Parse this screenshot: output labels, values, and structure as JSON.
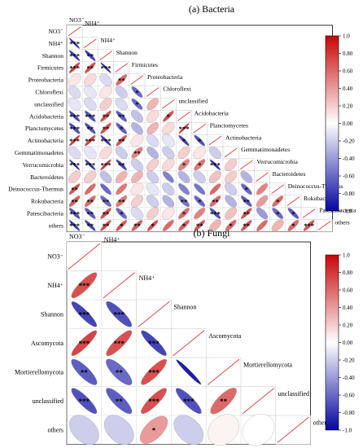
{
  "chart_data": [
    {
      "type": "heatmap",
      "subtype": "lower-triangle correlation ellipse matrix",
      "title": "(a) Bacteria",
      "variables": [
        "NO3⁻",
        "NH4⁺",
        "Shannon",
        "Firmicutes",
        "Proteobacteria",
        "Chloroflexi",
        "unclassified",
        "Acidobacteria",
        "Planctomycetes",
        "Actinobacteria",
        "Gemmatimonadetes",
        "Verrucomicrobia",
        "Bacteroidetes",
        "Deinococcus-Thermus",
        "Rokubacteria",
        "Patescibacteria",
        "others"
      ],
      "matrix": [
        [
          -0.85
        ],
        [
          -0.8,
          -0.75
        ],
        [
          0.75,
          0.7,
          -0.85
        ],
        [
          0.1,
          0.15,
          -0.15,
          0.6
        ],
        [
          -0.15,
          -0.1,
          0.1,
          -0.2,
          -0.6
        ],
        [
          -0.1,
          -0.15,
          0.2,
          -0.15,
          -0.6,
          0.3
        ],
        [
          -0.75,
          -0.7,
          0.7,
          -0.65,
          -0.25,
          0.15,
          0.7
        ],
        [
          -0.7,
          -0.7,
          0.7,
          -0.65,
          -0.3,
          0.3,
          0.15,
          0.85
        ],
        [
          0.8,
          0.75,
          -0.8,
          0.7,
          0.1,
          -0.15,
          -0.1,
          -0.75,
          -0.7
        ],
        [
          -0.15,
          -0.1,
          0.15,
          -0.2,
          0.5,
          -0.3,
          -0.2,
          0.2,
          0.1,
          -0.2
        ],
        [
          -0.85,
          -0.8,
          0.8,
          -0.75,
          -0.2,
          0.2,
          0.15,
          0.5,
          0.55,
          -0.8,
          0.2
        ],
        [
          0.2,
          0.2,
          -0.25,
          0.3,
          0.3,
          -0.2,
          -0.5,
          -0.3,
          -0.2,
          0.25,
          0.2,
          -0.3
        ],
        [
          0.7,
          0.6,
          -0.6,
          0.55,
          0.1,
          -0.1,
          -0.2,
          -0.5,
          -0.55,
          0.6,
          -0.2,
          -0.6,
          0.5
        ],
        [
          0.65,
          0.6,
          -0.6,
          0.55,
          0.2,
          -0.2,
          -0.3,
          -0.55,
          -0.6,
          0.6,
          -0.3,
          -0.65,
          0.4,
          0.6
        ],
        [
          -0.7,
          -0.65,
          0.7,
          -0.6,
          -0.15,
          0.2,
          0.1,
          0.6,
          0.5,
          -0.7,
          0.25,
          0.7,
          -0.4,
          -0.6,
          -0.65
        ],
        [
          -0.8,
          -0.75,
          0.75,
          0.7,
          0.65,
          0.7,
          0.6,
          0.65,
          0.7,
          0.3,
          0.6,
          0.7,
          0.6,
          0.3,
          0.6,
          0.7
        ]
      ],
      "stars": [
        [
          "***"
        ],
        [
          "***",
          "**"
        ],
        [
          "***",
          "**",
          "***"
        ],
        [
          "",
          "",
          "",
          "**"
        ],
        [
          "",
          "",
          "",
          "",
          "*"
        ],
        [
          "",
          "",
          "",
          "",
          "*",
          ""
        ],
        [
          "***",
          "***",
          "**",
          "**",
          "",
          "",
          "*"
        ],
        [
          "***",
          "**",
          "**",
          "*",
          "",
          "",
          "",
          "***"
        ],
        [
          "***",
          "***",
          "***",
          "**",
          "",
          "",
          "",
          "*",
          "*"
        ],
        [
          "",
          "",
          "",
          "",
          "**",
          "",
          "",
          "",
          "",
          ""
        ],
        [
          "***",
          "***",
          "***",
          "**",
          "",
          "",
          "",
          "*",
          "*",
          "***",
          ""
        ],
        [
          "",
          "",
          "",
          "",
          "",
          "",
          "",
          "",
          "",
          "",
          "",
          ""
        ],
        [
          "**",
          "",
          "",
          "",
          "",
          "",
          "",
          "",
          "",
          "",
          "",
          "*",
          ""
        ],
        [
          "**",
          "**",
          "**",
          "**",
          "",
          "",
          "",
          "**",
          "*",
          "**",
          "",
          "**",
          "",
          "*"
        ],
        [
          "***",
          "**",
          "**",
          "*",
          "",
          "",
          "",
          "*",
          "",
          "***",
          "",
          "**",
          "",
          "*",
          "*"
        ],
        [
          "***",
          "**",
          "**",
          "*",
          "**",
          "*",
          "",
          "*",
          "**",
          "",
          "*",
          "**",
          "",
          "",
          "*",
          "***"
        ]
      ],
      "colorbar": {
        "ticks": [
          "1.0",
          "0.80",
          "0.60",
          "0.40",
          "0.20",
          "0.00",
          "-0.20",
          "-0.40",
          "-0.60",
          "-0.80",
          "-1.0"
        ],
        "range": [
          -1,
          1
        ]
      }
    },
    {
      "type": "heatmap",
      "subtype": "lower-triangle correlation ellipse matrix",
      "title": "(b) Fungi",
      "variables": [
        "NO3⁻",
        "NH4⁺",
        "Shannon",
        "Ascomycota",
        "Mortierellomycota",
        "unclassified",
        "others"
      ],
      "matrix": [
        [
          0.7
        ],
        [
          -0.75,
          -0.7
        ],
        [
          0.75,
          0.7,
          -0.75
        ],
        [
          -0.65,
          -0.6,
          0.7,
          -0.9
        ],
        [
          -0.7,
          -0.65,
          0.7,
          -0.7,
          0.6
        ],
        [
          -0.2,
          -0.2,
          0.4,
          -0.2,
          0.05,
          0.0
        ]
      ],
      "stars": [
        [
          "***"
        ],
        [
          "***",
          "***"
        ],
        [
          "***",
          "***",
          "***"
        ],
        [
          "**",
          "**",
          "***",
          ""
        ],
        [
          "***",
          "**",
          "***",
          "***",
          "**"
        ],
        [
          "",
          "",
          "*",
          "",
          "",
          ""
        ]
      ],
      "colorbar": {
        "ticks": [
          "1.0",
          "0.80",
          "0.60",
          "0.40",
          "0.20",
          "0.00",
          "-0.20",
          "-0.40",
          "-0.60",
          "-0.80",
          "-1.0"
        ],
        "range": [
          -1,
          1
        ]
      }
    }
  ]
}
